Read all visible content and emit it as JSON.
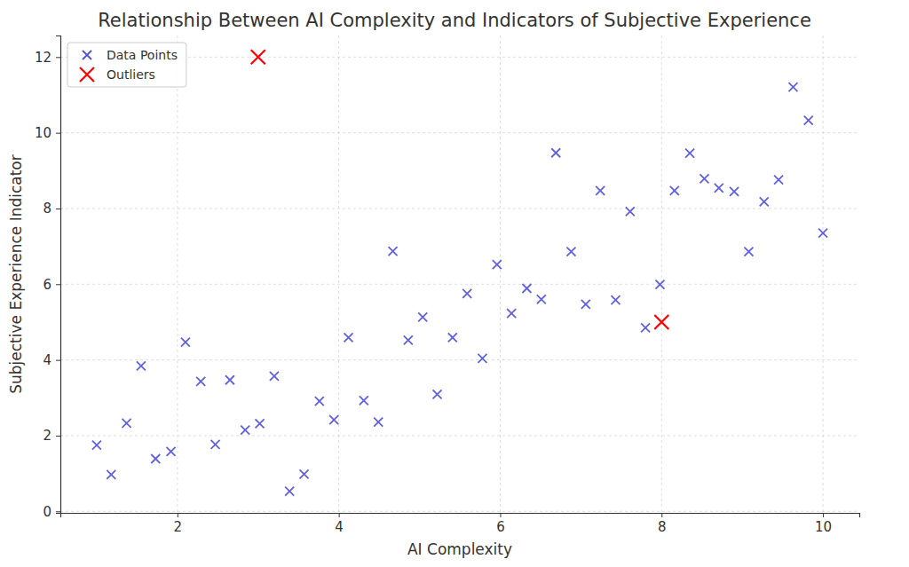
{
  "chart_data": {
    "type": "scatter",
    "title": "Relationship Between AI Complexity and Indicators of Subjective Experience",
    "x_label": "AI Complexity",
    "y_label": "Subjective Experience Indicator",
    "xlim": [
      0.55,
      10.45
    ],
    "ylim": [
      -0.04,
      12.57
    ],
    "xticks": [
      2,
      4,
      6,
      8,
      10
    ],
    "yticks": [
      0,
      2,
      4,
      6,
      8,
      10,
      12
    ],
    "grid": true,
    "legend": "upper left",
    "series": [
      {
        "name": "Data Points",
        "color": "#5050dc",
        "marker": "x",
        "x": [
          1.0,
          1.18,
          1.37,
          1.55,
          1.73,
          1.92,
          2.1,
          2.29,
          2.47,
          2.65,
          2.84,
          3.02,
          3.2,
          3.39,
          3.57,
          3.76,
          3.94,
          4.12,
          4.31,
          4.49,
          4.67,
          4.86,
          5.04,
          5.22,
          5.41,
          5.59,
          5.78,
          5.96,
          6.14,
          6.33,
          6.51,
          6.69,
          6.88,
          7.06,
          7.24,
          7.43,
          7.61,
          7.8,
          7.98,
          8.16,
          8.35,
          8.53,
          8.71,
          8.9,
          9.08,
          9.27,
          9.45,
          9.63,
          9.82,
          10.0
        ],
        "values": [
          1.75,
          0.97,
          2.33,
          3.84,
          1.39,
          1.58,
          4.47,
          3.43,
          1.77,
          3.47,
          2.15,
          2.32,
          3.57,
          0.53,
          0.98,
          2.91,
          2.42,
          4.59,
          2.93,
          2.36,
          6.87,
          4.52,
          5.13,
          3.09,
          4.59,
          5.75,
          4.04,
          6.52,
          5.23,
          5.89,
          5.6,
          9.47,
          6.86,
          5.47,
          8.47,
          5.58,
          7.92,
          4.85,
          5.99,
          8.47,
          9.46,
          8.79,
          8.54,
          8.45,
          6.86,
          8.18,
          8.76,
          11.21,
          10.33,
          7.35
        ]
      },
      {
        "name": "Outliers",
        "color": "#ff0000",
        "marker": "X",
        "x": [
          3,
          8
        ],
        "values": [
          12,
          5
        ]
      }
    ]
  }
}
